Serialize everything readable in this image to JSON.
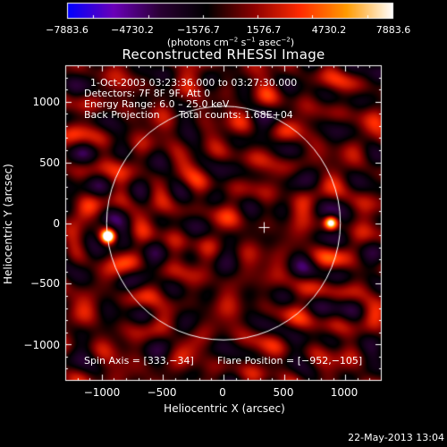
{
  "colorbar": {
    "ticks": [
      "−7883.6",
      "−4730.2",
      "−1576.7",
      "1576.7",
      "4730.2",
      "7883.6"
    ],
    "tick_values": [
      -7883.6,
      -4730.2,
      -1576.7,
      1576.7,
      4730.2,
      7883.6
    ],
    "units_prefix": "(photons cm",
    "units_exp1": "−2",
    "units_mid": " s",
    "units_exp2": "−1",
    "units_mid2": " asec",
    "units_exp3": "−2",
    "units_suffix": ")",
    "colors": [
      "#0000ff",
      "#6a00b8",
      "#2a0033",
      "#000000",
      "#8a0000",
      "#ff2a00",
      "#ff9a00",
      "#ffffff"
    ]
  },
  "title": "Reconstructed RHESSI Image",
  "info": {
    "time_range": "1‑Oct‑2003 03:23:36.000 to 03:27:30.000",
    "detectors": "Detectors: 7F 8F 9F, Att 0",
    "energy": "Energy Range: 6.0 – 25.0 keV",
    "method": "Back Projection",
    "total_counts": "Total counts: 1.68E+04",
    "spin_axis": "Spin Axis = [333,−34]",
    "flare_position": "Flare Position = [−952,−105]"
  },
  "axes": {
    "xlabel": "Heliocentric X (arcsec)",
    "ylabel": "Heliocentric Y (arcsec)",
    "xticks": [
      "−1000",
      "−500",
      "0",
      "500",
      "1000"
    ],
    "yticks": [
      "1000",
      "500",
      "0",
      "−500",
      "−1000"
    ],
    "xrange": [
      -1300,
      1300
    ],
    "yrange": [
      -1300,
      1300
    ]
  },
  "image": {
    "spin_axis": [
      333,
      -34
    ],
    "flare_position": [
      -952,
      -105
    ],
    "mirror_source": [
      880,
      5
    ],
    "solar_limb_radius_arcsec": 960
  },
  "footer": {
    "timestamp": "22‑May‑2013 13:04"
  }
}
